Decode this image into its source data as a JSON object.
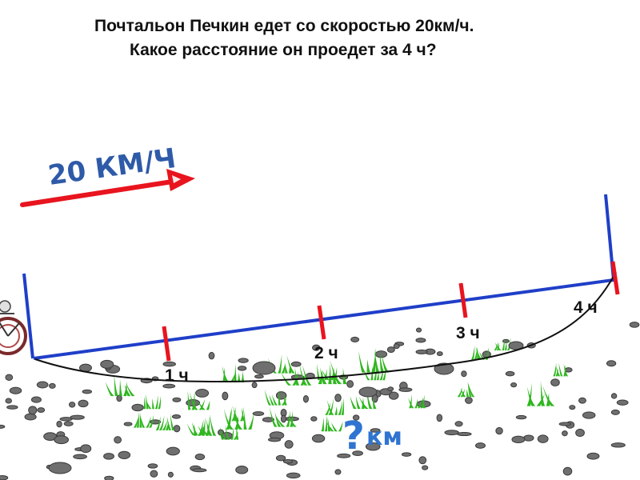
{
  "question": {
    "line1": "Почтальон Печкин  едет со скоростью 20км/ч.",
    "line2": "Какое расстояние он проедет за 4 ч?"
  },
  "speed": {
    "label": "20 КМ/Ч"
  },
  "ticks": [
    {
      "label": "1 ч"
    },
    {
      "label": "2 ч"
    },
    {
      "label": "3 ч"
    },
    {
      "label": "4 ч"
    }
  ],
  "distance": {
    "mark": "?",
    "unit": "км"
  },
  "colors": {
    "speed_text": "#2e5aa8",
    "arrow": "#e8141e",
    "segment_line": "#1f3fc8",
    "tick": "#e8141e",
    "path": "#111111",
    "grass": "#2fb61f",
    "stones": "#6f6f6f",
    "question": "#2f74d0"
  },
  "icons": [
    "bicycle-icon"
  ]
}
